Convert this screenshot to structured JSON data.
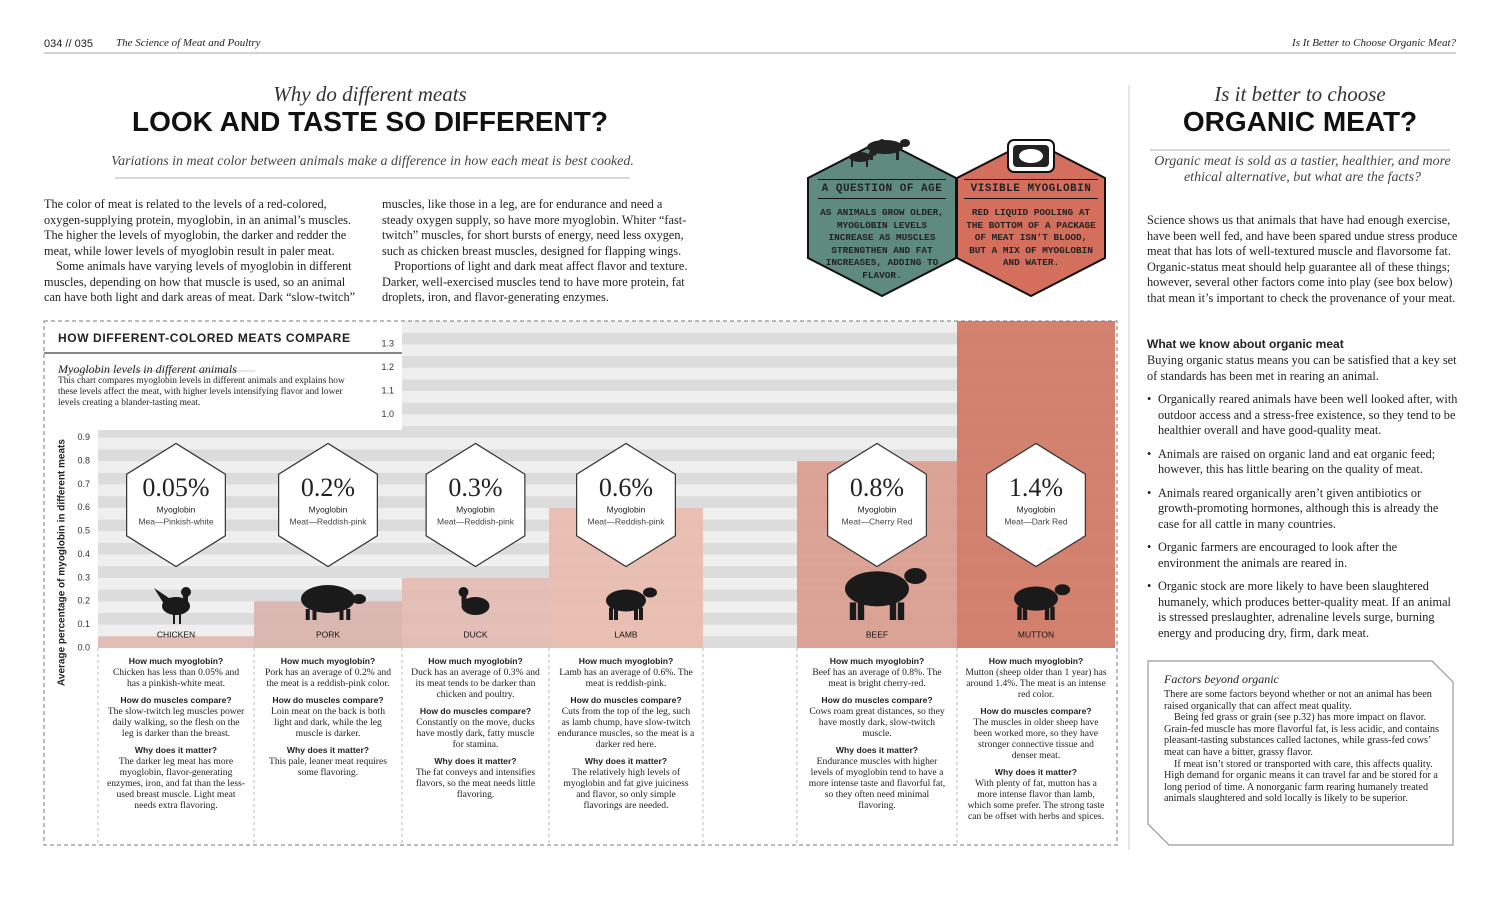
{
  "header": {
    "pages": "034 // 035",
    "section": "The Science of Meat and Poultry",
    "right_section": "Is It Better to Choose Organic Meat?"
  },
  "left": {
    "kicker": "Why do different meats",
    "title": "LOOK AND TASTE SO DIFFERENT?",
    "intro": "Variations in meat color between animals make a difference in how each meat is best cooked.",
    "body": [
      "The color of meat is related to the levels of a red-colored, oxygen-supplying protein, myoglobin, in an animal’s muscles. The higher the levels of myoglobin, the darker and redder the meat, while lower levels of myoglobin result in paler meat.",
      "Some animals have varying levels of myoglobin in different muscles, depending on how that muscle is used, so an animal can have both light and dark areas of meat. Dark “slow-twitch” muscles, like those in a leg, are for endurance and need a steady oxygen supply, so have more myoglobin. Whiter “fast-twitch” muscles, for short bursts of energy, need less oxygen, such as chicken breast muscles, designed for flapping wings.",
      "Proportions of light and dark meat affect flavor and texture. Darker, well-exercised muscles tend to have more protein, fat droplets, iron, and flavor-generating enzymes."
    ]
  },
  "info_boxes": [
    {
      "title": "A QUESTION OF AGE",
      "text": "AS ANIMALS GROW OLDER, MYOGLOBIN LEVELS INCREASE AS MUSCLES STRENGTHEN AND FAT INCREASES, ADDING TO FLAVOR."
    },
    {
      "title": "VISIBLE MYOGLOBIN",
      "text": "RED LIQUID POOLING AT THE BOTTOM OF A PACKAGE OF MEAT ISN’T BLOOD, BUT A MIX OF MYOGLOBIN AND WATER."
    }
  ],
  "chart_data": {
    "type": "bar",
    "title": "HOW DIFFERENT-COLORED MEATS COMPARE",
    "subtitle": "Myoglobin levels in different animals",
    "description": "This chart compares myoglobin levels in different animals and explains how these levels affect the meat, with higher levels intensifying flavor and lower levels creating a blander-tasting meat.",
    "y_label": "Average percentage of myoglobin in different meats",
    "categories": [
      "CHICKEN",
      "PORK",
      "DUCK",
      "LAMB",
      "BEEF",
      "MUTTON"
    ],
    "values": [
      0.05,
      0.2,
      0.3,
      0.6,
      0.8,
      1.4
    ],
    "value_labels": [
      "0.05%",
      "0.2%",
      "0.3%",
      "0.6%",
      "0.8%",
      "1.4%"
    ],
    "measure_label": "Myoglobin",
    "meat_labels": [
      "Mea—Pinkish-white",
      "Meat—Reddish-pink",
      "Meat—Reddish-pink",
      "Meat—Reddish-pink",
      "Meat—Cherry Red",
      "Meat—Dark Red"
    ],
    "colors": [
      "#e3b9b1",
      "#d8b0aa",
      "#e2bab0",
      "#e8b9ab",
      "#d99a8a",
      "#d0735f"
    ],
    "ylim": [
      0,
      1.4
    ],
    "yticks": [
      {
        "value": 0,
        "label": "0.0"
      },
      0.1,
      0.2,
      0.3,
      0.4,
      0.5,
      0.6,
      0.7,
      0.8,
      0.9,
      {
        "value": 1,
        "label": "1.0"
      },
      1.1,
      1.2,
      1.3
    ],
    "details": [
      [
        {
          "q": "How much myoglobin?",
          "a": "Chicken has less than 0.05% and has a pinkish-white meat."
        },
        {
          "q": "How do muscles compare?",
          "a": "The slow-twitch leg muscles power daily walking, so the flesh on the leg is darker than the breast."
        },
        {
          "q": "Why does it matter?",
          "a": "The darker leg meat has more myoglobin, flavor-generating enzymes, iron, and fat than the less-used breast muscle. Light meat needs extra flavoring."
        }
      ],
      [
        {
          "q": "How much myoglobin?",
          "a": "Pork has an average of 0.2% and the meat is a reddish-pink color."
        },
        {
          "q": "How do muscles compare?",
          "a": "Loin meat on the back is both light and dark, while the leg muscle is darker."
        },
        {
          "q": "Why does it matter?",
          "a": "This pale, leaner meat requires some flavoring."
        }
      ],
      [
        {
          "q": "How much myoglobin?",
          "a": "Duck has an average of 0.3% and its meat tends to be darker than chicken and poultry."
        },
        {
          "q": "How do muscles compare?",
          "a": "Constantly on the move, ducks have mostly dark, fatty muscle for stamina."
        },
        {
          "q": "Why does it matter?",
          "a": "The fat conveys and intensifies flavors, so the meat needs little flavoring."
        }
      ],
      [
        {
          "q": "How much myoglobin?",
          "a": "Lamb has an average of 0.6%. The meat is reddish-pink."
        },
        {
          "q": "How do muscles compare?",
          "a": "Cuts from the top of the leg, such as lamb chump, have slow-twitch endurance muscles, so the meat is a darker red here."
        },
        {
          "q": "Why does it matter?",
          "a": "The relatively high levels of myoglobin and fat give juiciness and flavor, so only simple flavorings are needed."
        }
      ],
      [
        {
          "q": "How much myoglobin?",
          "a": "Beef has an average of 0.8%. The meat is bright cherry-red."
        },
        {
          "q": "How do muscles compare?",
          "a": "Cows roam great distances, so they have mostly dark, slow-twitch muscle."
        },
        {
          "q": "Why does it matter?",
          "a": "Endurance muscles with higher levels of myoglobin tend to have a more intense taste and flavorful fat, so they often need minimal flavoring."
        }
      ],
      [
        {
          "q": "How much myoglobin?",
          "a": "Mutton (sheep older than 1 year) has around 1.4%. The meat is an intense red color."
        },
        {
          "q": "How do muscles compare?",
          "a": "The muscles in older sheep have been worked more, so they have stronger connective tissue and denser meat."
        },
        {
          "q": "Why does it matter?",
          "a": "With plenty of fat, mutton has a more intense flavor than lamb, which some prefer. The strong taste can be offset with herbs and spices."
        }
      ]
    ]
  },
  "right": {
    "kicker": "Is it better to choose",
    "title": "ORGANIC MEAT?",
    "intro": "Organic meat is sold as a tastier, healthier, and more ethical alternative, but what are the facts?",
    "body": "Science shows us that animals that have had enough exercise, have been well fed, and have been spared undue stress produce meat that has lots of well-textured muscle and flavorsome fat. Organic-status meat should help guarantee all of these things; however, several other factors come into play (see box below) that mean it’s important to check the provenance of your meat.",
    "heading": "What we know about organic meat",
    "lead": "Buying organic status means you can be satisfied that a key set of standards has been met in rearing an animal.",
    "bullets": [
      "Organically reared animals have been well looked after, with outdoor access and a stress-free existence, so they tend to be healthier overall and have good-quality meat.",
      "Animals are raised on organic land and eat organic feed; however, this has little bearing on the quality of meat.",
      "Animals reared organically aren’t given antibiotics or growth-promoting hormones, although this is already the case for all cattle in many countries.",
      "Organic farmers are encouraged to look after the environment the animals are reared in.",
      "Organic stock are more likely to have been slaughtered humanely, which produces better-quality meat. If an animal is stressed preslaughter, adrenaline levels surge, burning energy and producing dry, firm, dark meat."
    ],
    "box": {
      "title": "Factors beyond organic",
      "paragraphs": [
        "There are some factors beyond whether or not an animal has been raised organically that can affect meat quality.",
        "Being fed grass or grain (see p.32) has more impact on flavor. Grain-fed muscle has more flavorful fat, is less acidic, and contains pleasant-tasting substances called lactones, while grass-fed cows’ meat can have a bitter, grassy flavor.",
        "If meat isn’t stored or transported with care, this affects quality. High demand for organic means it can travel far and be stored for a long period of time. A nonorganic farm rearing humanely treated animals slaughtered and sold locally is likely to be superior."
      ]
    }
  }
}
